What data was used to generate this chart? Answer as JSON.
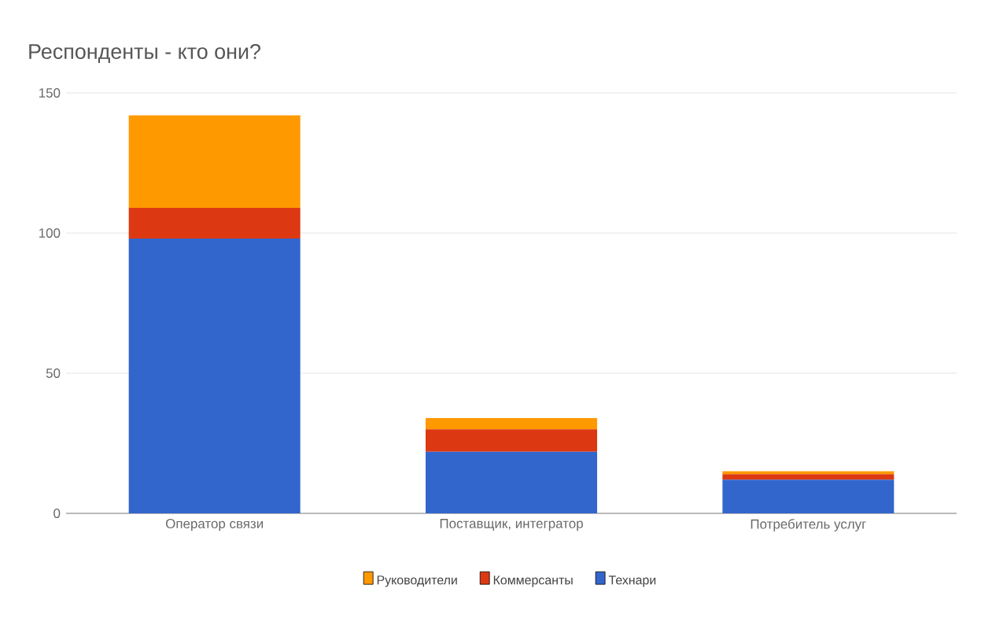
{
  "chart_data": {
    "type": "bar",
    "stacked": true,
    "title": "Респонденты - кто они?",
    "categories": [
      "Оператор связи",
      "Поставщик, интегратор",
      "Потребитель услуг"
    ],
    "series": [
      {
        "name": "Технари",
        "color": "#3366cc",
        "values": [
          98,
          22,
          12
        ]
      },
      {
        "name": "Коммерсанты",
        "color": "#dc3912",
        "values": [
          11,
          8,
          2
        ]
      },
      {
        "name": "Руководители",
        "color": "#ff9900",
        "values": [
          33,
          4,
          1
        ]
      }
    ],
    "ylim": [
      0,
      150
    ],
    "yticks": [
      0,
      50,
      100,
      150
    ],
    "grid": "y",
    "legend": "bottom"
  }
}
